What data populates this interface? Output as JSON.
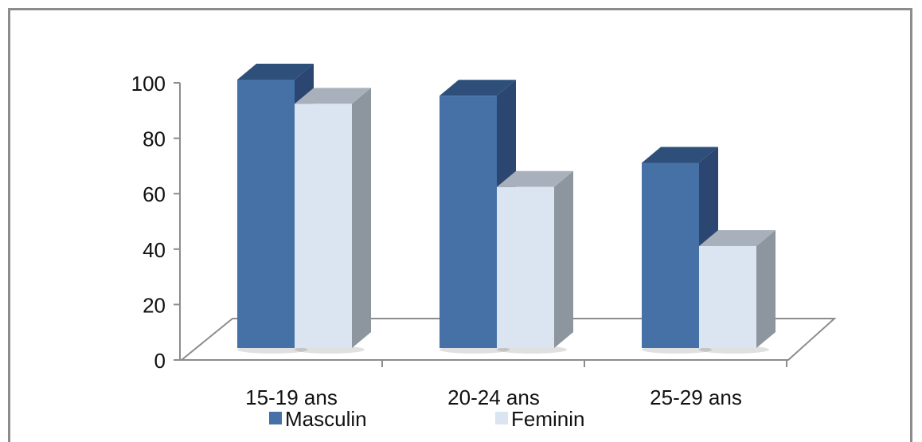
{
  "chart_data": {
    "type": "bar",
    "categories": [
      "15-19 ans",
      "20-24 ans",
      "25-29 ans"
    ],
    "series": [
      {
        "name": "Masculin",
        "values": [
          100,
          94,
          69
        ],
        "color": "#4571a7",
        "top_color": "#2e4f7a",
        "side_color": "#2b4670"
      },
      {
        "name": "Feminin",
        "values": [
          91,
          60,
          38
        ],
        "color": "#dbe5f1",
        "top_color": "#a8b1bb",
        "side_color": "#8d959e"
      }
    ],
    "yticks": [
      0,
      20,
      40,
      60,
      80,
      100
    ],
    "ylim": [
      0,
      100
    ],
    "grid": false,
    "legend_position": "bottom",
    "floor_color": "#ffffff",
    "axis_color": "#8c8c8c",
    "title": "",
    "xlabel": "",
    "ylabel": ""
  }
}
